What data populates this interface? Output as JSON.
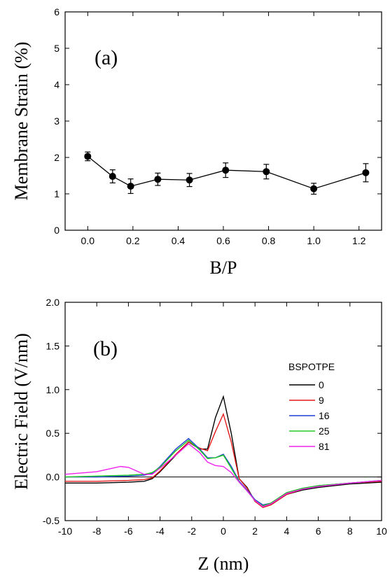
{
  "chart_data": [
    {
      "type": "scatter",
      "panel_label": "(a)",
      "xlabel": "B/P",
      "ylabel": "Membrane Strain (%)",
      "xlim": [
        -0.1,
        1.3
      ],
      "ylim": [
        0,
        6
      ],
      "xticks": [
        "0.0",
        "0.2",
        "0.4",
        "0.6",
        "0.8",
        "1.0",
        "1.2"
      ],
      "yticks": [
        "0",
        "1",
        "2",
        "3",
        "4",
        "5",
        "6"
      ],
      "grid": false,
      "series": [
        {
          "x": [
            0.0,
            0.11,
            0.19,
            0.31,
            0.45,
            0.61,
            0.79,
            1.0,
            1.23
          ],
          "y": [
            2.03,
            1.48,
            1.21,
            1.4,
            1.38,
            1.65,
            1.61,
            1.14,
            1.58
          ],
          "err": [
            0.12,
            0.18,
            0.2,
            0.17,
            0.18,
            0.2,
            0.2,
            0.15,
            0.25
          ]
        }
      ]
    },
    {
      "type": "line",
      "panel_label": "(b)",
      "xlabel": "Z (nm)",
      "ylabel": "Electric Field (V/nm)",
      "xlim": [
        -10,
        10
      ],
      "ylim": [
        -0.5,
        2.0
      ],
      "xticks": [
        "-10",
        "-8",
        "-6",
        "-4",
        "-2",
        "0",
        "2",
        "4",
        "6",
        "8",
        "10"
      ],
      "yticks": [
        "-0.5",
        "0.0",
        "0.5",
        "1.0",
        "1.5",
        "2.0"
      ],
      "grid": false,
      "legend": {
        "title": "BSPOTPE",
        "placement": "right"
      },
      "series": [
        {
          "name": "0",
          "color": "#000000",
          "x": [
            -10,
            -8,
            -6,
            -5,
            -4.5,
            -4,
            -3,
            -2.2,
            -1.5,
            -1,
            -0.5,
            0,
            0.5,
            1,
            1.5,
            2,
            2.5,
            3,
            4,
            5,
            6,
            8,
            10
          ],
          "y": [
            -0.07,
            -0.07,
            -0.06,
            -0.05,
            -0.02,
            0.06,
            0.25,
            0.4,
            0.32,
            0.32,
            0.68,
            0.92,
            0.5,
            -0.02,
            -0.12,
            -0.28,
            -0.33,
            -0.32,
            -0.2,
            -0.15,
            -0.12,
            -0.08,
            -0.06
          ]
        },
        {
          "name": "9",
          "color": "#e41a1c",
          "x": [
            -10,
            -8,
            -6,
            -5,
            -4.5,
            -4,
            -3,
            -2.2,
            -1.5,
            -1,
            -0.5,
            0,
            0.5,
            1,
            1.5,
            2,
            2.5,
            3,
            4,
            5,
            6,
            8,
            10
          ],
          "y": [
            -0.05,
            -0.05,
            -0.04,
            -0.03,
            -0.01,
            0.07,
            0.26,
            0.4,
            0.33,
            0.3,
            0.52,
            0.72,
            0.4,
            -0.02,
            -0.13,
            -0.28,
            -0.35,
            -0.32,
            -0.2,
            -0.14,
            -0.11,
            -0.07,
            -0.05
          ]
        },
        {
          "name": "16",
          "color": "#1f3fd6",
          "x": [
            -10,
            -8,
            -6,
            -5,
            -4.5,
            -4,
            -3,
            -2.2,
            -1.5,
            -1,
            -0.5,
            0,
            0.5,
            1,
            1.5,
            2,
            2.5,
            3,
            4,
            5,
            6,
            8,
            10
          ],
          "y": [
            0.0,
            0.0,
            0.01,
            0.02,
            0.04,
            0.12,
            0.32,
            0.44,
            0.32,
            0.22,
            0.22,
            0.26,
            0.12,
            -0.05,
            -0.15,
            -0.26,
            -0.32,
            -0.3,
            -0.18,
            -0.13,
            -0.1,
            -0.07,
            -0.04
          ]
        },
        {
          "name": "25",
          "color": "#22cc22",
          "x": [
            -10,
            -8,
            -6,
            -5,
            -4.5,
            -4,
            -3,
            -2.2,
            -1.5,
            -1,
            -0.5,
            0,
            0.5,
            1,
            1.5,
            2,
            2.5,
            3,
            4,
            5,
            6,
            8,
            10
          ],
          "y": [
            0.0,
            0.01,
            0.02,
            0.03,
            0.05,
            0.11,
            0.3,
            0.42,
            0.31,
            0.21,
            0.22,
            0.25,
            0.1,
            -0.06,
            -0.16,
            -0.27,
            -0.33,
            -0.3,
            -0.18,
            -0.13,
            -0.1,
            -0.07,
            -0.04
          ]
        },
        {
          "name": "81",
          "color": "#ee22ee",
          "x": [
            -10,
            -8,
            -7,
            -6.5,
            -6,
            -5.5,
            -5,
            -4.5,
            -4,
            -3,
            -2.2,
            -1.5,
            -1,
            -0.5,
            0,
            0.5,
            1,
            1.5,
            2,
            2.5,
            3,
            4,
            5,
            6,
            8,
            10
          ],
          "y": [
            0.03,
            0.06,
            0.1,
            0.12,
            0.11,
            0.07,
            0.03,
            0.03,
            0.1,
            0.25,
            0.38,
            0.28,
            0.17,
            0.13,
            0.12,
            0.05,
            -0.06,
            -0.16,
            -0.27,
            -0.34,
            -0.31,
            -0.19,
            -0.14,
            -0.11,
            -0.07,
            -0.04
          ]
        }
      ]
    }
  ]
}
